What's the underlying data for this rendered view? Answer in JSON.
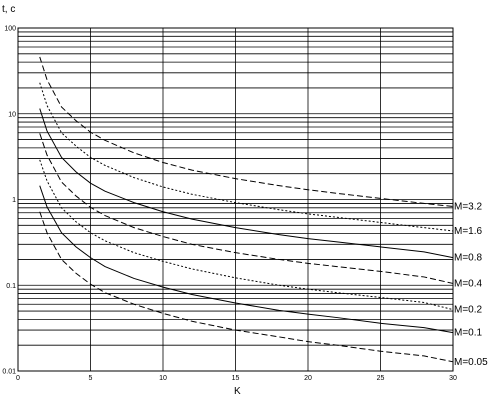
{
  "chart_data": {
    "type": "line",
    "title": "",
    "ylabel": "t, c",
    "xlabel": "K",
    "xlim": [
      0,
      30
    ],
    "ylim": [
      0.01,
      100
    ],
    "yscale": "log",
    "grid": true,
    "x_ticks": [
      "0",
      "5",
      "10",
      "15",
      "20",
      "25",
      "30"
    ],
    "y_ticks": [
      "0.01",
      "0.1",
      "1",
      "10",
      "100"
    ],
    "x": [
      1.5,
      2,
      3,
      4,
      5,
      6,
      8,
      10,
      12,
      15,
      18,
      20,
      22,
      25,
      28,
      30
    ],
    "series": [
      {
        "name": "M=3.2",
        "style": "dashed",
        "values": [
          46,
          25,
          12,
          8.3,
          6.1,
          4.9,
          3.5,
          2.7,
          2.2,
          1.75,
          1.45,
          1.3,
          1.18,
          1.03,
          0.9,
          0.83
        ]
      },
      {
        "name": "M=1.6",
        "style": "dotted",
        "values": [
          23,
          12.5,
          6.0,
          4.2,
          3.1,
          2.5,
          1.8,
          1.4,
          1.15,
          0.92,
          0.76,
          0.68,
          0.62,
          0.54,
          0.47,
          0.43
        ]
      },
      {
        "name": "M=0.8",
        "style": "solid",
        "values": [
          11.5,
          6.3,
          3.1,
          2.1,
          1.55,
          1.25,
          0.92,
          0.72,
          0.59,
          0.47,
          0.39,
          0.35,
          0.32,
          0.28,
          0.245,
          0.21
        ]
      },
      {
        "name": "M=0.4",
        "style": "dashed",
        "values": [
          5.9,
          3.3,
          1.6,
          1.1,
          0.81,
          0.65,
          0.47,
          0.37,
          0.3,
          0.24,
          0.2,
          0.18,
          0.165,
          0.145,
          0.125,
          0.105
        ]
      },
      {
        "name": "M=0.2",
        "style": "dotted",
        "values": [
          2.9,
          1.65,
          0.8,
          0.55,
          0.41,
          0.33,
          0.24,
          0.19,
          0.155,
          0.122,
          0.1,
          0.09,
          0.082,
          0.072,
          0.063,
          0.052
        ]
      },
      {
        "name": "M=0.1",
        "style": "solid",
        "values": [
          1.45,
          0.82,
          0.41,
          0.28,
          0.21,
          0.165,
          0.12,
          0.095,
          0.078,
          0.062,
          0.051,
          0.046,
          0.042,
          0.036,
          0.032,
          0.028
        ]
      },
      {
        "name": "M=0.05",
        "style": "dashed",
        "values": [
          0.72,
          0.41,
          0.2,
          0.138,
          0.103,
          0.082,
          0.06,
          0.047,
          0.038,
          0.03,
          0.025,
          0.022,
          0.02,
          0.017,
          0.015,
          0.0128
        ]
      }
    ]
  }
}
